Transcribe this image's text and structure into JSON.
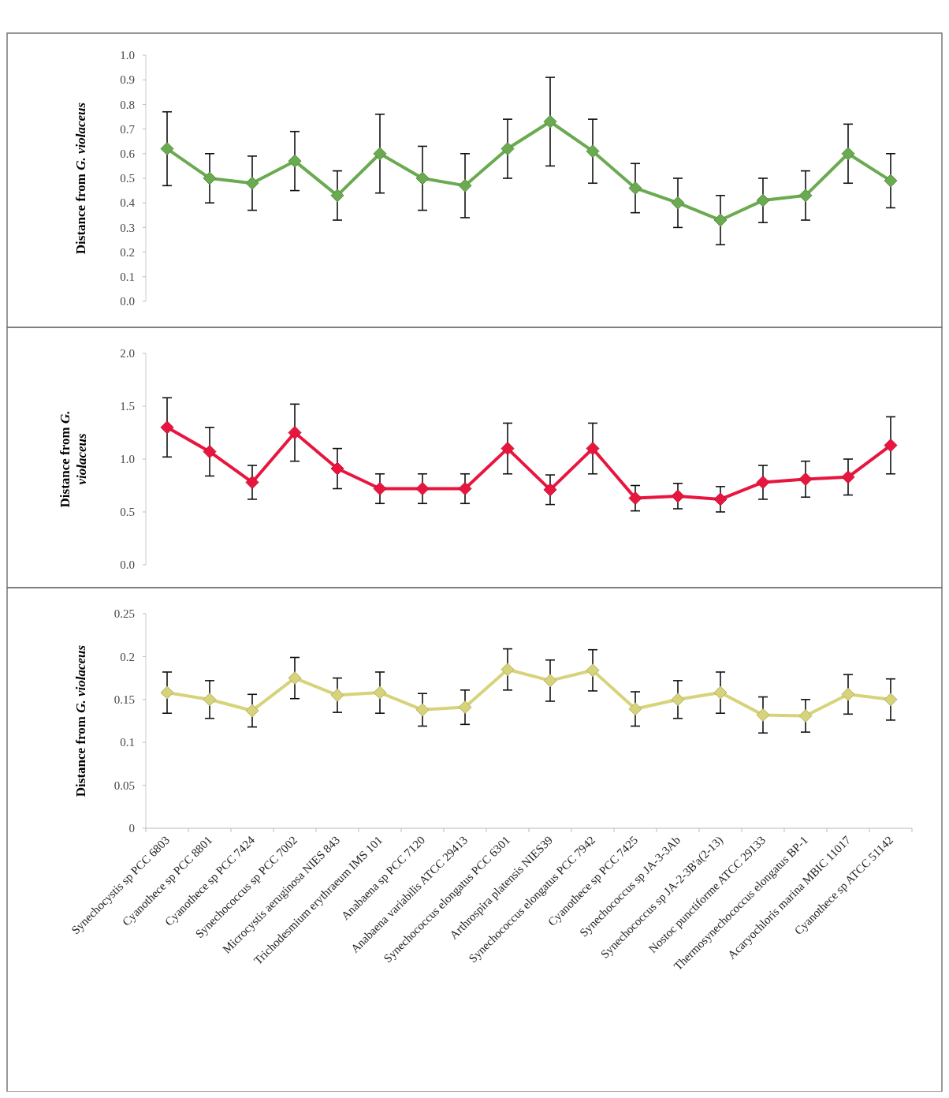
{
  "chart_data": [
    {
      "type": "line",
      "ylabel": "Distance from G. violaceus",
      "categories": [
        null,
        null,
        null,
        null,
        null,
        null,
        null,
        null,
        null,
        null,
        null,
        null,
        null,
        null,
        null,
        null,
        null,
        null
      ],
      "series": [
        {
          "color": "#6aaa50",
          "values": [
            0.62,
            0.5,
            0.48,
            0.57,
            0.43,
            0.6,
            0.5,
            0.47,
            0.62,
            0.73,
            0.61,
            0.46,
            0.4,
            0.33,
            0.41,
            0.43,
            0.6,
            0.49
          ],
          "errors": [
            0.15,
            0.1,
            0.11,
            0.12,
            0.1,
            0.16,
            0.13,
            0.13,
            0.12,
            0.18,
            0.13,
            0.1,
            0.1,
            0.1,
            0.09,
            0.1,
            0.12,
            0.11
          ]
        }
      ],
      "ylim": [
        0,
        1
      ],
      "yticks": [
        {
          "value": 0,
          "label": "0.0"
        },
        0.1,
        0.2,
        0.3,
        0.4,
        0.5,
        0.6,
        0.7,
        0.8,
        0.9,
        {
          "value": 1,
          "label": "1.0"
        }
      ],
      "marker": "diamond",
      "line_style": "solid",
      "grid": false,
      "tick_labels": "y"
    },
    {
      "type": "line",
      "ylabel": "Distance from G. violaceus",
      "categories": [
        null,
        null,
        null,
        null,
        null,
        null,
        null,
        null,
        null,
        null,
        null,
        null,
        null,
        null,
        null,
        null,
        null,
        null
      ],
      "series": [
        {
          "color": "#e8163e",
          "values": [
            1.3,
            1.07,
            0.78,
            1.25,
            0.91,
            0.72,
            0.72,
            0.72,
            1.1,
            0.71,
            1.1,
            0.63,
            0.65,
            0.62,
            0.78,
            0.81,
            0.83,
            1.13
          ],
          "errors": [
            0.28,
            0.23,
            0.16,
            0.27,
            0.19,
            0.14,
            0.14,
            0.14,
            0.24,
            0.14,
            0.24,
            0.12,
            0.12,
            0.12,
            0.16,
            0.17,
            0.17,
            0.27
          ]
        }
      ],
      "ylim": [
        0,
        2
      ],
      "yticks": [
        {
          "value": 0,
          "label": "0.0"
        },
        0.5,
        {
          "value": 1,
          "label": "1.0"
        },
        1.5,
        {
          "value": 2,
          "label": "2.0"
        }
      ],
      "marker": "diamond",
      "line_style": "solid",
      "grid": false,
      "tick_labels": "y"
    },
    {
      "type": "line",
      "ylabel": "Distance from G. violaceus",
      "categories": [
        "Synechocystis sp PCC 6803",
        "Cyanothece sp PCC 8801",
        "Cyanothece sp PCC 7424",
        "Synechococcus sp PCC 7002",
        "Microcystis aeruginosa NIES 843",
        "Trichodesmium erythraeum IMS 101",
        "Anabaena sp PCC 7120",
        "Anabaena variabilis ATCC 29413",
        "Synechococcus elongatus PCC 6301",
        "Arthrospira platensis NIES39",
        "Synechococcus elongatus PCC 7942",
        "Cyanothece sp PCC 7425",
        "Synechococcus sp JA-3-3Ab",
        "Synechococcus sp JA-2-3B'a(2-13)",
        "Nostoc punctiforme ATCC 29133",
        "Thermosynechococcus elongatus BP-1",
        "Acaryochloris marina MBIC 11017",
        "Cyanothece sp ATCC 51142"
      ],
      "series": [
        {
          "color": "#d6d37a",
          "values": [
            0.158,
            0.15,
            0.137,
            0.175,
            0.155,
            0.158,
            0.138,
            0.141,
            0.185,
            0.172,
            0.184,
            0.139,
            0.15,
            0.158,
            0.132,
            0.131,
            0.156,
            0.15
          ],
          "errors": [
            0.024,
            0.022,
            0.019,
            0.024,
            0.02,
            0.024,
            0.019,
            0.02,
            0.024,
            0.024,
            0.024,
            0.02,
            0.022,
            0.024,
            0.021,
            0.019,
            0.023,
            0.024
          ]
        }
      ],
      "ylim": [
        0,
        0.25
      ],
      "yticks": [
        0,
        0.05,
        0.1,
        0.15,
        0.2,
        0.25
      ],
      "marker": "diamond",
      "line_style": "solid",
      "grid": false
    }
  ]
}
